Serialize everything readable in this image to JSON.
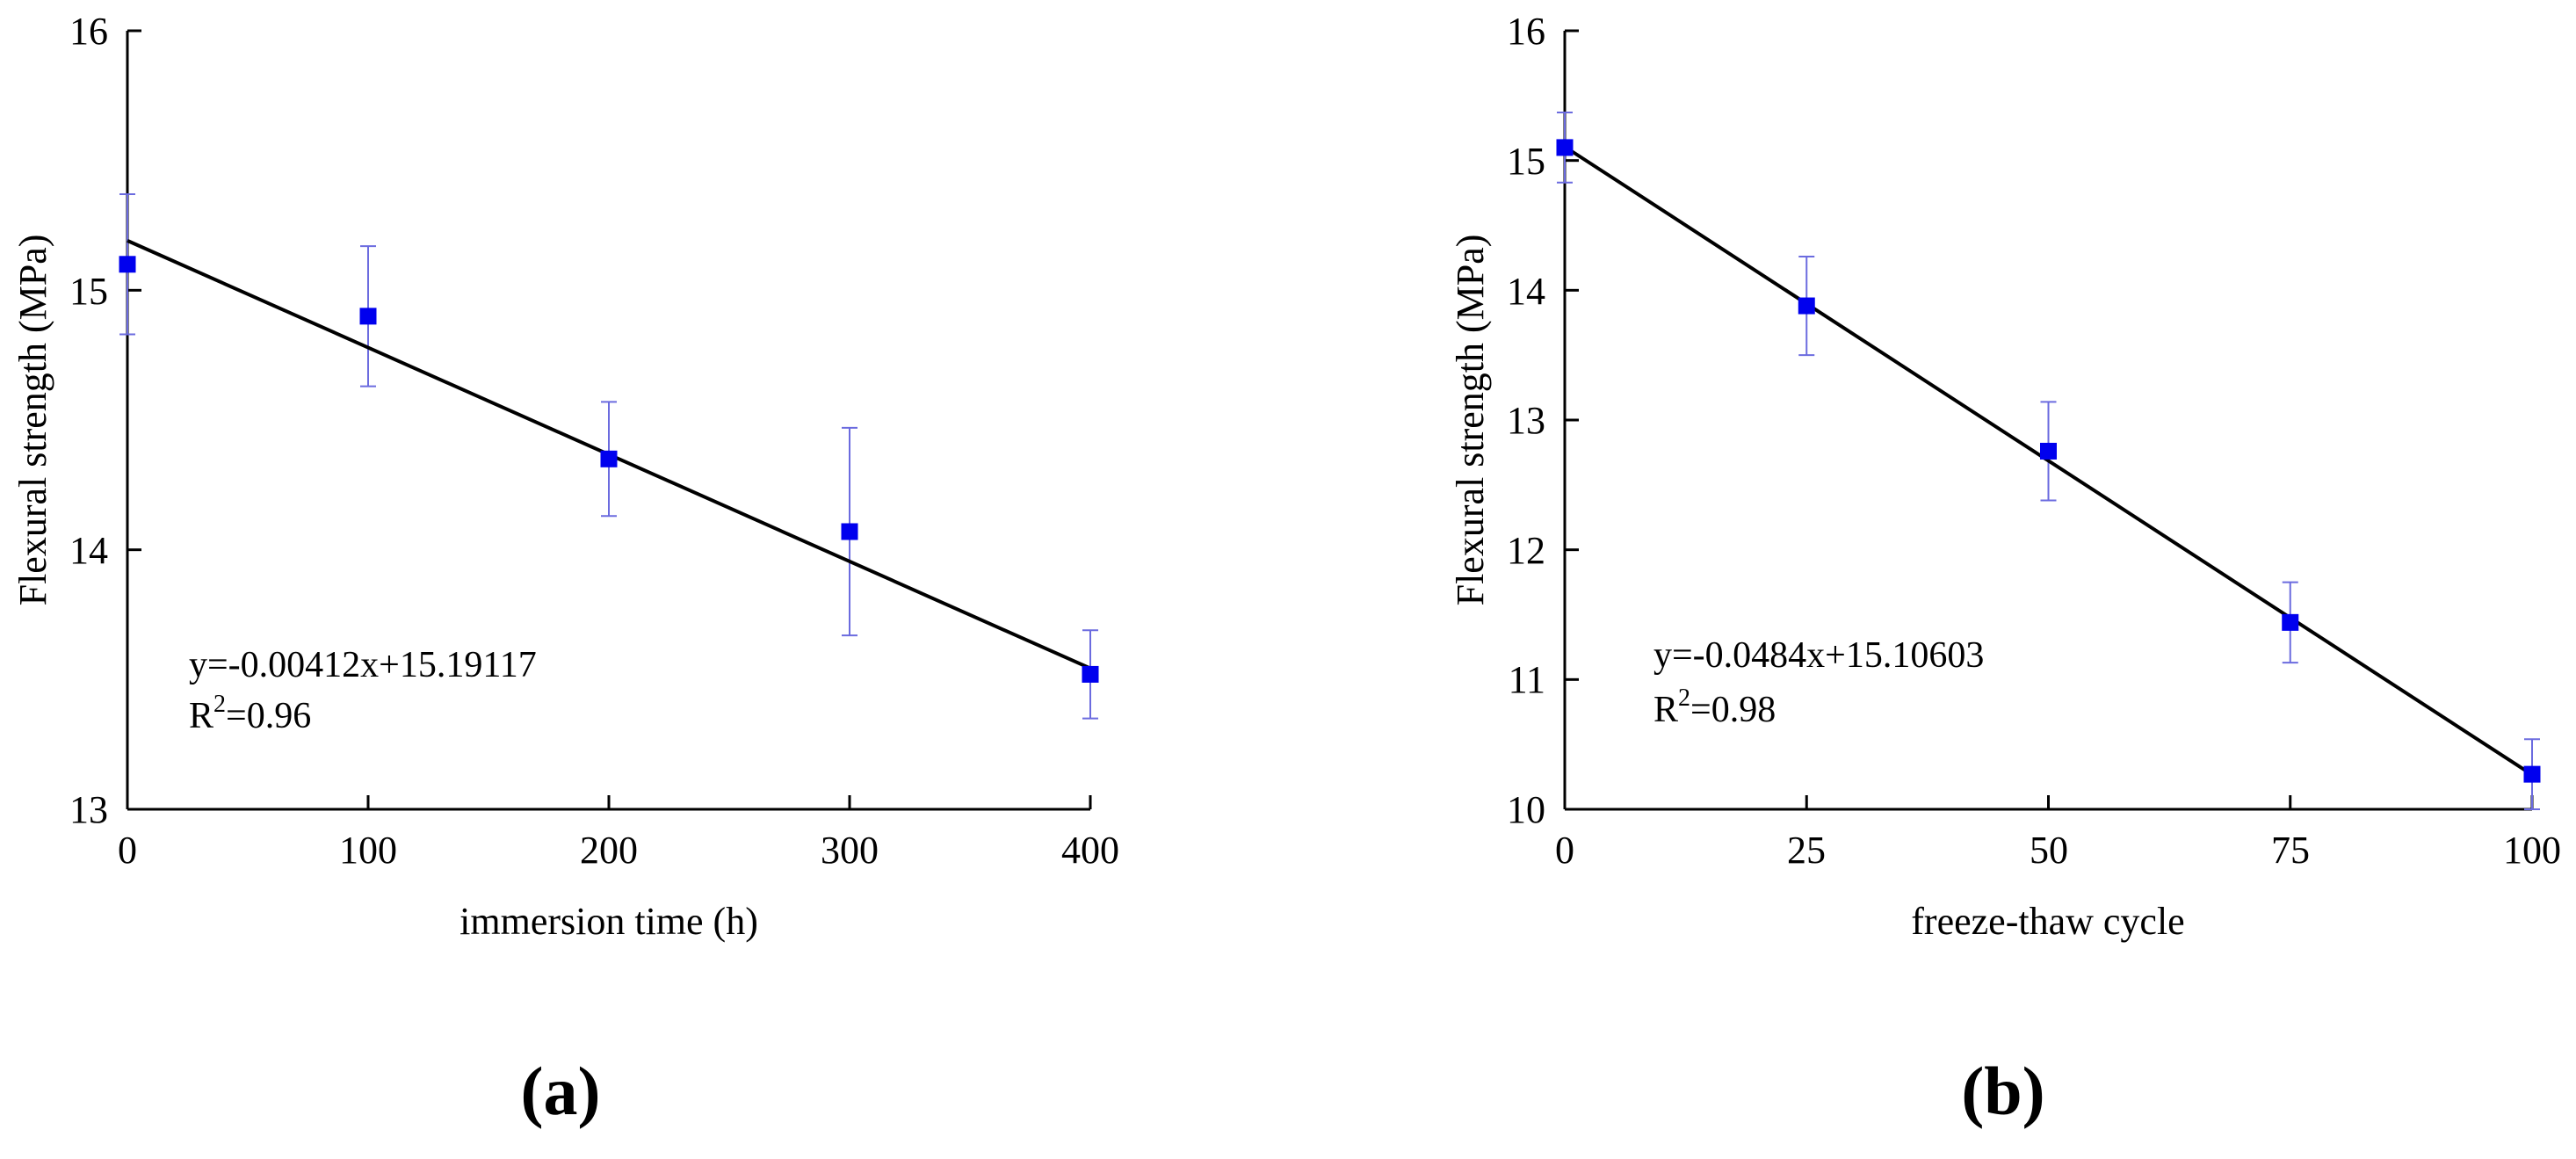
{
  "chart_data": [
    {
      "type": "scatter",
      "panel_label": "(a)",
      "xlabel": "immersion time (h)",
      "ylabel": "Flexural strength (MPa)",
      "xlim": [
        0,
        400
      ],
      "ylim": [
        13,
        16
      ],
      "xticks": [
        0,
        100,
        200,
        300,
        400
      ],
      "yticks": [
        13,
        14,
        15,
        16
      ],
      "x": [
        0,
        100,
        200,
        300,
        400
      ],
      "y": [
        15.1,
        14.9,
        14.35,
        14.07,
        13.52
      ],
      "error": [
        0.27,
        0.27,
        0.22,
        0.4,
        0.17
      ],
      "fit": {
        "slope": -0.00412,
        "intercept": 15.19117
      },
      "equation": "y=-0.00412x+15.19117",
      "r2_prefix": "R",
      "r2_exponent": "2",
      "r2_value": "=0.96",
      "colors": {
        "marker": "#0000ee",
        "errorbar": "#6b6bdf",
        "line": "#000000",
        "axis": "#000000"
      }
    },
    {
      "type": "scatter",
      "panel_label": "(b)",
      "xlabel": "freeze-thaw cycle",
      "ylabel": "Flexural strength (MPa)",
      "xlim": [
        0,
        100
      ],
      "ylim": [
        10,
        16
      ],
      "xticks": [
        0,
        25,
        50,
        75,
        100
      ],
      "yticks": [
        10,
        11,
        12,
        13,
        14,
        15,
        16
      ],
      "x": [
        0,
        25,
        50,
        75,
        100
      ],
      "y": [
        15.1,
        13.88,
        12.76,
        11.44,
        10.27
      ],
      "error": [
        0.27,
        0.38,
        0.38,
        0.31,
        0.27
      ],
      "fit": {
        "slope": -0.0484,
        "intercept": 15.10603
      },
      "equation": "y=-0.0484x+15.10603",
      "r2_prefix": "R",
      "r2_exponent": "2",
      "r2_value": "=0.98",
      "colors": {
        "marker": "#0000ee",
        "errorbar": "#6b6bdf",
        "line": "#000000",
        "axis": "#000000"
      }
    }
  ]
}
